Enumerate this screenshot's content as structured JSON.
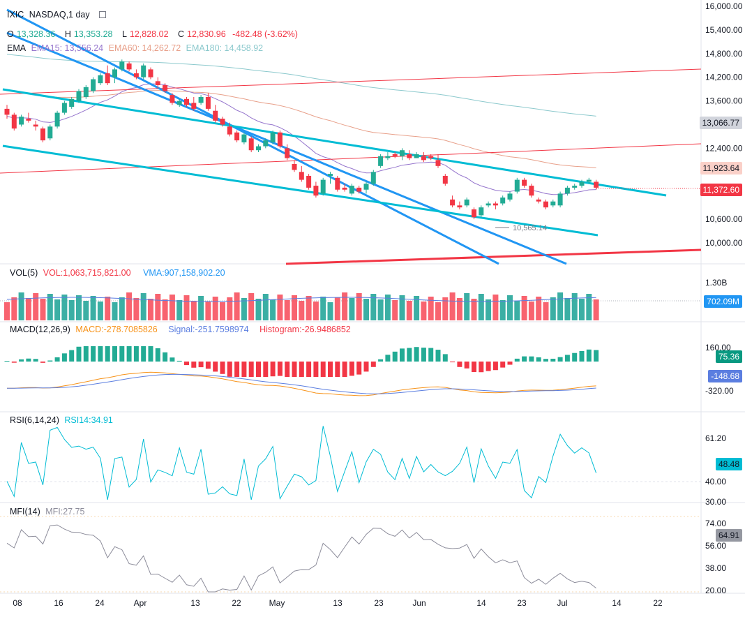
{
  "header": {
    "symbol": "IXIC",
    "name": "NASDAQ,1 day",
    "ohlc": {
      "o_label": "O",
      "o": "13,328.36",
      "h_label": "H",
      "h": "13,353.28",
      "l_label": "L",
      "l": "12,828.02",
      "c_label": "C",
      "c": "12,830.96",
      "chg": "-482.48 (-3.62%)"
    },
    "ema": {
      "label": "EMA",
      "e15": "EMA15: 13,556.24",
      "e60": "EMA60: 14,262.72",
      "e180": "EMA180: 14,458.92"
    }
  },
  "colors": {
    "up": "#22ab94",
    "down": "#f23645",
    "trend_blue": "#2196f3",
    "trend_teal": "#00bcd4",
    "trend_red": "#f23645",
    "ema15": "#9575cd",
    "ema60": "#e8a08a",
    "ema180": "#8cc9cd",
    "macd": "#f7931a",
    "signal": "#5b7ee0",
    "rsi": "#00bcd4",
    "mfi": "#8c8c9a"
  },
  "chart_data": [
    {
      "type": "candlestick",
      "title": "IXIC NASDAQ,1 day",
      "x": [
        "08",
        "16",
        "24",
        "Apr",
        "13",
        "22",
        "May",
        "13",
        "23",
        "Jun",
        "14",
        "23",
        "Jul",
        "14",
        "22"
      ],
      "y_ticks": [
        "16,000.00",
        "15,400.00",
        "14,800.00",
        "14,200.00",
        "13,600.00",
        "12,400.00",
        "10,600.00",
        "10,000.00"
      ],
      "ylim": [
        9700,
        16100
      ],
      "candles": [
        [
          13400,
          13500,
          13150,
          13250
        ],
        [
          13250,
          13300,
          12850,
          12900
        ],
        [
          13000,
          13250,
          12950,
          13200
        ],
        [
          13150,
          13300,
          13050,
          13100
        ],
        [
          13000,
          13100,
          12850,
          12950
        ],
        [
          12900,
          12950,
          12550,
          12600
        ],
        [
          12650,
          13000,
          12600,
          12950
        ],
        [
          12950,
          13350,
          12900,
          13300
        ],
        [
          13300,
          13600,
          13250,
          13550
        ],
        [
          13450,
          13700,
          13400,
          13650
        ],
        [
          13600,
          13900,
          13550,
          13850
        ],
        [
          13700,
          14000,
          13650,
          13950
        ],
        [
          13850,
          14200,
          13800,
          14150
        ],
        [
          14050,
          14300,
          14000,
          14250
        ],
        [
          14300,
          14500,
          14000,
          14050
        ],
        [
          14200,
          14450,
          14050,
          14400
        ],
        [
          14400,
          14650,
          14350,
          14600
        ],
        [
          14550,
          14600,
          14350,
          14400
        ],
        [
          14300,
          14400,
          14150,
          14200
        ],
        [
          14200,
          14550,
          14150,
          14500
        ],
        [
          14400,
          14450,
          14150,
          14200
        ],
        [
          14100,
          14200,
          13900,
          14000
        ],
        [
          14000,
          14050,
          13800,
          13850
        ],
        [
          13750,
          13800,
          13500,
          13550
        ],
        [
          13500,
          13650,
          13450,
          13600
        ],
        [
          13650,
          13700,
          13450,
          13500
        ],
        [
          13550,
          13700,
          13350,
          13400
        ],
        [
          13550,
          13750,
          13500,
          13700
        ],
        [
          13700,
          13800,
          13350,
          13400
        ],
        [
          13350,
          13500,
          13050,
          13100
        ],
        [
          13150,
          13200,
          12950,
          13000
        ],
        [
          12950,
          13050,
          12700,
          12750
        ],
        [
          12800,
          12850,
          12550,
          12600
        ],
        [
          12550,
          12800,
          12500,
          12750
        ],
        [
          12650,
          12700,
          12300,
          12350
        ],
        [
          12350,
          12500,
          12300,
          12450
        ],
        [
          12450,
          12650,
          12400,
          12600
        ],
        [
          12550,
          12850,
          12500,
          12800
        ],
        [
          12800,
          12850,
          12400,
          12450
        ],
        [
          12400,
          12500,
          12100,
          12150
        ],
        [
          12000,
          12100,
          11800,
          11850
        ],
        [
          11800,
          11950,
          11550,
          11600
        ],
        [
          11700,
          11750,
          11350,
          11400
        ],
        [
          11450,
          11550,
          11150,
          11200
        ],
        [
          11250,
          11650,
          11200,
          11600
        ],
        [
          11700,
          11800,
          11500,
          11750
        ],
        [
          11650,
          11700,
          11300,
          11350
        ],
        [
          11400,
          11500,
          11300,
          11350
        ],
        [
          11250,
          11500,
          11200,
          11450
        ],
        [
          11400,
          11450,
          11250,
          11300
        ],
        [
          11350,
          11550,
          11250,
          11500
        ],
        [
          11500,
          11850,
          11450,
          11800
        ],
        [
          11950,
          12250,
          11900,
          12200
        ],
        [
          12150,
          12300,
          12100,
          12200
        ],
        [
          12250,
          12300,
          12150,
          12200
        ],
        [
          12200,
          12400,
          12100,
          12350
        ],
        [
          12250,
          12350,
          12100,
          12150
        ],
        [
          12150,
          12300,
          12150,
          12250
        ],
        [
          12200,
          12300,
          12050,
          12100
        ],
        [
          12200,
          12250,
          12100,
          12150
        ],
        [
          12100,
          12250,
          11900,
          11950
        ],
        [
          11700,
          11750,
          11450,
          11500
        ],
        [
          11100,
          11200,
          10900,
          10950
        ],
        [
          10950,
          11050,
          10850,
          10900
        ],
        [
          10950,
          11150,
          10900,
          11100
        ],
        [
          10850,
          10900,
          10600,
          10650
        ],
        [
          10700,
          10950,
          10650,
          10900
        ],
        [
          10950,
          11050,
          10900,
          11000
        ],
        [
          11000,
          11050,
          10850,
          10950
        ],
        [
          11000,
          11200,
          10950,
          11150
        ],
        [
          11100,
          11300,
          11050,
          11250
        ],
        [
          11300,
          11650,
          11250,
          11600
        ],
        [
          11600,
          11650,
          11400,
          11450
        ],
        [
          11450,
          11500,
          11150,
          11200
        ],
        [
          11100,
          11150,
          11000,
          11050
        ],
        [
          11050,
          11100,
          10850,
          10900
        ],
        [
          10950,
          11100,
          10900,
          11050
        ],
        [
          10950,
          11300,
          10900,
          11250
        ],
        [
          11250,
          11450,
          11200,
          11400
        ],
        [
          11400,
          11500,
          11350,
          11450
        ],
        [
          11450,
          11600,
          11400,
          11550
        ],
        [
          11550,
          11650,
          11500,
          11600
        ],
        [
          11550,
          11600,
          11350,
          11400
        ]
      ],
      "annotations": [
        "10,565.14"
      ],
      "price_labels": [
        "13,066.77",
        "11,923.64",
        "11,372.60"
      ]
    },
    {
      "type": "bar",
      "title": "VOL(5)",
      "series": [
        {
          "name": "VOL",
          "value": "1,063,715,821.00"
        },
        {
          "name": "VMA",
          "value": "907,158,902.20"
        }
      ],
      "y_ticks": [
        "1.30B"
      ],
      "price_label": "702.09M"
    },
    {
      "type": "line",
      "title": "MACD(12,26,9)",
      "series": [
        {
          "name": "MACD",
          "value": "-278.7085826"
        },
        {
          "name": "Signal",
          "value": "-251.7598974"
        },
        {
          "name": "Histogram",
          "value": "-26.9486852"
        }
      ],
      "y_ticks": [
        "160.00",
        "-320.00"
      ],
      "price_labels": [
        "75.36",
        "-148.68"
      ]
    },
    {
      "type": "line",
      "title": "RSI(6,14,24)",
      "series": [
        {
          "name": "RSI14",
          "value": "34.91"
        }
      ],
      "y_ticks": [
        "61.20",
        "40.00",
        "30.00"
      ],
      "price_label": "48.48"
    },
    {
      "type": "line",
      "title": "MFI(14)",
      "series": [
        {
          "name": "MFI",
          "value": "27.75"
        }
      ],
      "y_ticks": [
        "74.00",
        "56.00",
        "38.00",
        "20.00"
      ],
      "price_label": "64.91"
    }
  ],
  "panels": {
    "vol": {
      "title": "VOL(5)",
      "vol": "VOL:1,063,715,821.00",
      "vma": "VMA:907,158,902.20"
    },
    "macd": {
      "title": "MACD(12,26,9)",
      "macd": "MACD:-278.7085826",
      "signal": "Signal:-251.7598974",
      "hist": "Histogram:-26.9486852"
    },
    "rsi": {
      "title": "RSI(6,14,24)",
      "rsi": "RSI14:34.91"
    },
    "mfi": {
      "title": "MFI(14)",
      "mfi": "MFI:27.75"
    }
  }
}
